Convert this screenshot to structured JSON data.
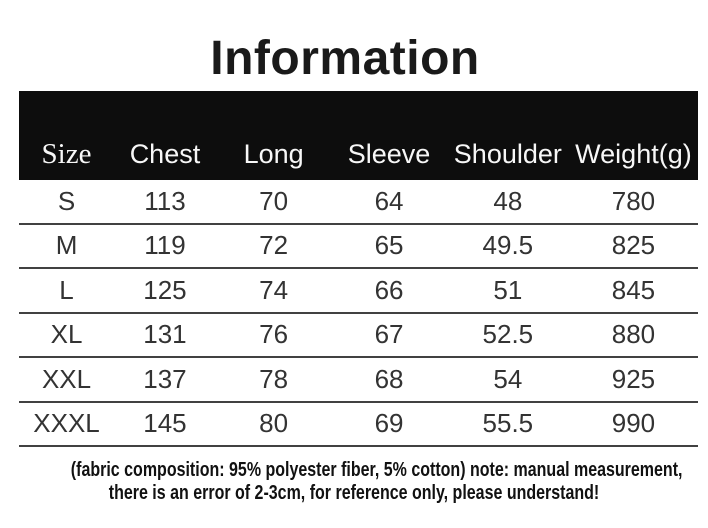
{
  "title": "Information",
  "table": {
    "columns": [
      "Size",
      "Chest",
      "Long",
      "Sleeve",
      "Shoulder",
      "Weight(g)"
    ],
    "rows": [
      {
        "size": "S",
        "chest": "113",
        "long": "70",
        "sleeve": "64",
        "shoulder": "48",
        "weight": "780"
      },
      {
        "size": "M",
        "chest": "119",
        "long": "72",
        "sleeve": "65",
        "shoulder": "49.5",
        "weight": "825"
      },
      {
        "size": "L",
        "chest": "125",
        "long": "74",
        "sleeve": "66",
        "shoulder": "51",
        "weight": "845"
      },
      {
        "size": "XL",
        "chest": "131",
        "long": "76",
        "sleeve": "67",
        "shoulder": "52.5",
        "weight": "880"
      },
      {
        "size": "XXL",
        "chest": "137",
        "long": "78",
        "sleeve": "68",
        "shoulder": "54",
        "weight": "925"
      },
      {
        "size": "XXXL",
        "chest": "145",
        "long": "80",
        "sleeve": "69",
        "shoulder": "55.5",
        "weight": "990"
      }
    ]
  },
  "footer": {
    "line1": "(fabric composition: 95% polyester fiber, 5% cotton) note: manual measurement,",
    "line2": "there is an error of 2-3cm, for reference only, please understand!"
  },
  "colors": {
    "background": "#ffffff",
    "header_background": "#0d0d0d",
    "header_text": "#f7f7f7",
    "body_text": "#333333",
    "divider": "#414141",
    "title_text": "#1a1a1a",
    "footer_text": "#111111"
  }
}
